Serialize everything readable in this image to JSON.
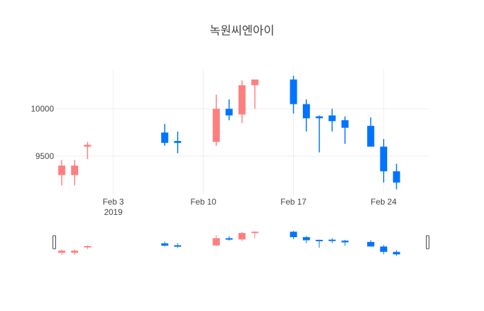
{
  "chart_data": {
    "type": "candlestick",
    "title": "녹원씨엔아이",
    "x_ticks": [
      {
        "date": "2019-02-03",
        "label": "Feb 3",
        "sublabel": "2019"
      },
      {
        "date": "2019-02-10",
        "label": "Feb 10",
        "sublabel": ""
      },
      {
        "date": "2019-02-17",
        "label": "Feb 17",
        "sublabel": ""
      },
      {
        "date": "2019-02-24",
        "label": "Feb 24",
        "sublabel": ""
      }
    ],
    "y_ticks": [
      9500,
      10000
    ],
    "xlim": [
      "2019-01-29T12:00",
      "2019-02-27T12:00"
    ],
    "ylim": [
      9090,
      10420
    ],
    "grid": true,
    "increasing_color": "#ff7f7f",
    "decreasing_color": "#0074ff",
    "rangeslider": true,
    "candles": [
      {
        "date": "2019-01-30",
        "open": 9300,
        "high": 9460,
        "low": 9190,
        "close": 9400
      },
      {
        "date": "2019-01-31",
        "open": 9300,
        "high": 9460,
        "low": 9190,
        "close": 9400
      },
      {
        "date": "2019-02-01",
        "open": 9600,
        "high": 9650,
        "low": 9470,
        "close": 9620
      },
      {
        "date": "2019-02-07",
        "open": 9750,
        "high": 9840,
        "low": 9610,
        "close": 9640
      },
      {
        "date": "2019-02-08",
        "open": 9660,
        "high": 9760,
        "low": 9530,
        "close": 9640
      },
      {
        "date": "2019-02-11",
        "open": 9650,
        "high": 10150,
        "low": 9610,
        "close": 10000
      },
      {
        "date": "2019-02-12",
        "open": 10000,
        "high": 10100,
        "low": 9880,
        "close": 9930
      },
      {
        "date": "2019-02-13",
        "open": 9940,
        "high": 10300,
        "low": 9850,
        "close": 10250
      },
      {
        "date": "2019-02-14",
        "open": 10250,
        "high": 10310,
        "low": 10000,
        "close": 10310
      },
      {
        "date": "2019-02-17",
        "open": 10310,
        "high": 10350,
        "low": 9950,
        "close": 10050
      },
      {
        "date": "2019-02-18",
        "open": 10050,
        "high": 10100,
        "low": 9760,
        "close": 9900
      },
      {
        "date": "2019-02-19",
        "open": 9920,
        "high": 9930,
        "low": 9540,
        "close": 9900
      },
      {
        "date": "2019-02-20",
        "open": 9930,
        "high": 10000,
        "low": 9760,
        "close": 9870
      },
      {
        "date": "2019-02-21",
        "open": 9880,
        "high": 9920,
        "low": 9630,
        "close": 9800
      },
      {
        "date": "2019-02-23",
        "open": 9820,
        "high": 9910,
        "low": 9600,
        "close": 9600
      },
      {
        "date": "2019-02-24",
        "open": 9600,
        "high": 9680,
        "low": 9220,
        "close": 9340
      },
      {
        "date": "2019-02-25",
        "open": 9340,
        "high": 9420,
        "low": 9150,
        "close": 9220
      }
    ]
  }
}
